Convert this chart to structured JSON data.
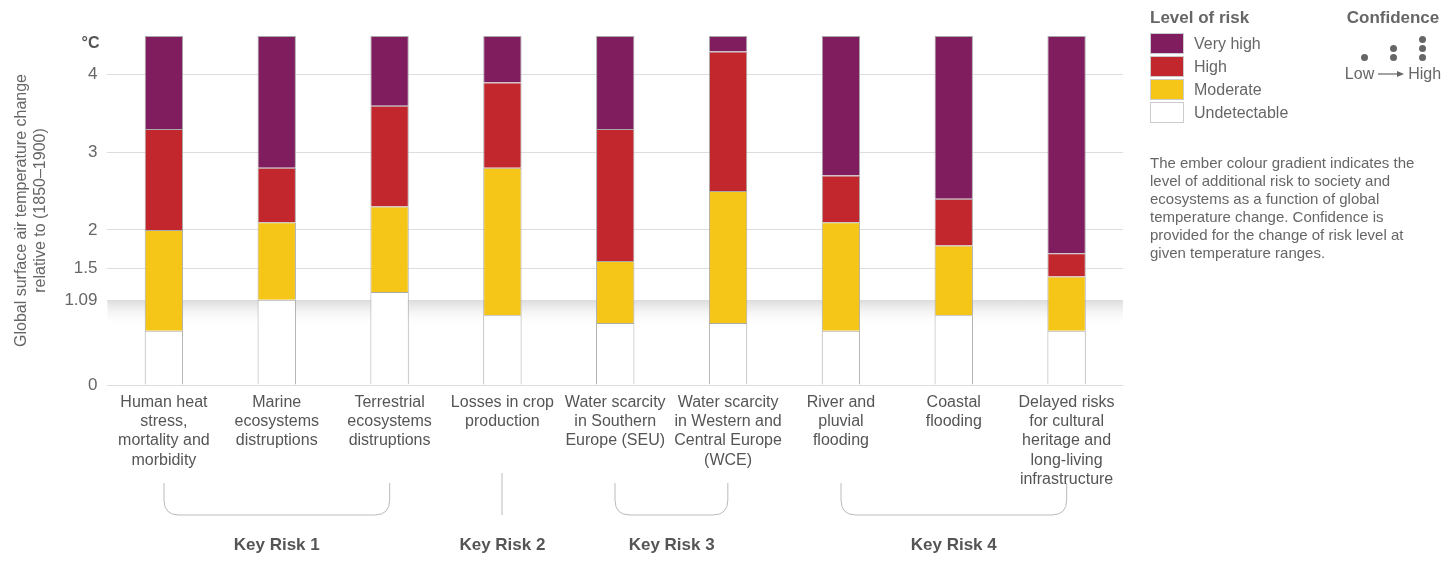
{
  "chart_data": {
    "type": "bar",
    "stacked": true,
    "ylabel": "Global surface air temperature change relative to (1850–1900)",
    "legend_title": "Level of risk",
    "categories": [
      "Human heat stress, mortality and morbidity",
      "Marine ecosystems distruptions",
      "Terrestrial ecosystems distruptions",
      "Losses in crop production",
      "Water scarcity in Southern Europe (SEU)",
      "Water scarcity in Western and Central Europe (WCE)",
      "River and pluvial flooding",
      "Coastal flooding",
      "Delayed risks for cultural heritage and long-living infrastructure"
    ],
    "series": [
      {
        "name": "Undetectable",
        "color": "#ffffff",
        "values": [
          0.7,
          1.1,
          1.2,
          0.9,
          0.8,
          0.8,
          0.7,
          0.9,
          0.7
        ]
      },
      {
        "name": "Moderate",
        "color": "#f5c518",
        "values": [
          1.3,
          1.0,
          1.1,
          1.9,
          0.8,
          1.7,
          1.4,
          0.9,
          0.7
        ]
      },
      {
        "name": "High",
        "color": "#c1272d",
        "values": [
          1.3,
          0.7,
          1.3,
          1.1,
          1.7,
          1.8,
          0.6,
          0.6,
          0.3
        ]
      },
      {
        "name": "Very high",
        "color": "#7f1d5e",
        "values": [
          1.2,
          1.7,
          0.9,
          0.6,
          1.2,
          0.2,
          1.8,
          2.1,
          2.8
        ]
      }
    ],
    "ylim": [
      0,
      4.5
    ],
    "yticks": [
      0,
      1.09,
      1.5,
      2,
      3,
      4
    ],
    "grid": "y",
    "legend": "top right",
    "bands": [
      {
        "axis": "y",
        "from": 0.75,
        "to": 1.09,
        "color": "#dddddd"
      }
    ],
    "annotations": [
      "°C",
      "Key Risk 1",
      "Key Risk 2",
      "Key Risk 3",
      "Key Risk 4",
      "Confidence",
      "Low",
      "High",
      "The ember colour gradient indicates the level of additional risk to society and ecosystems as a function of global temperature change. Confidence is provided for the change of risk level at given temperature ranges."
    ]
  }
}
